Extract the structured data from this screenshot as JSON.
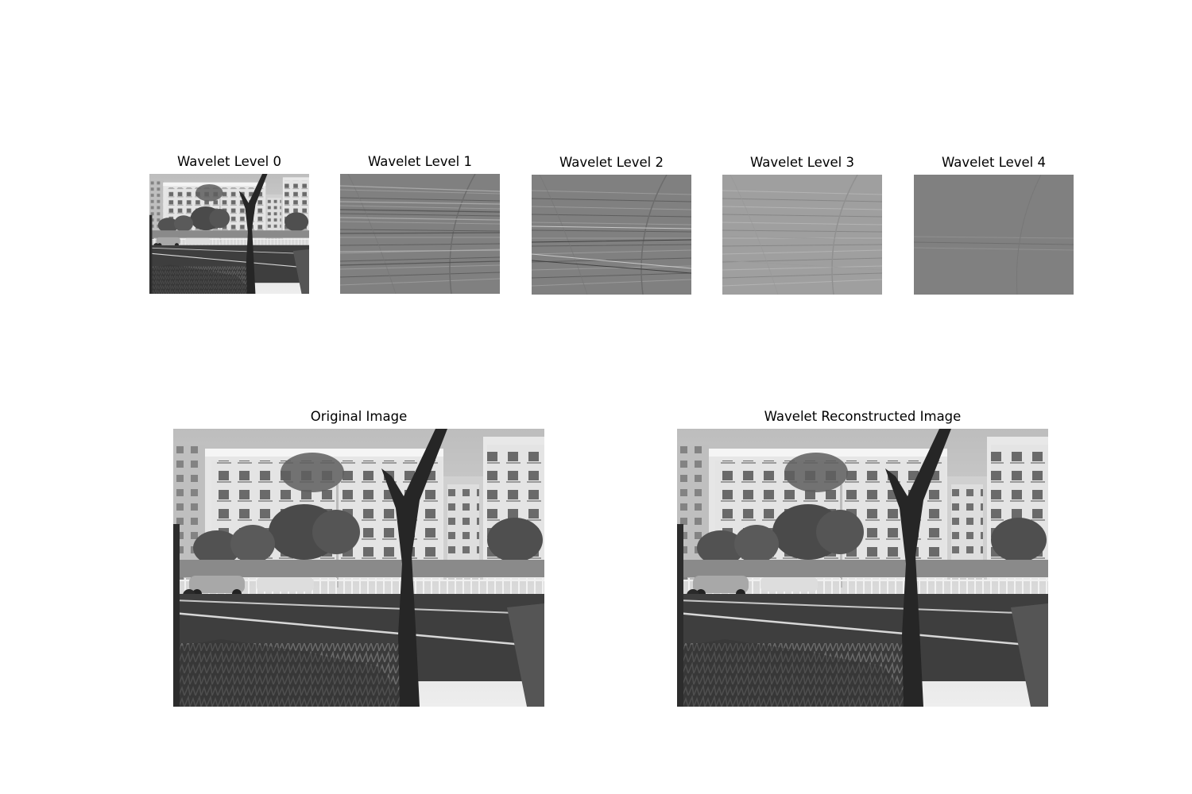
{
  "panels": {
    "wavelet": [
      {
        "title": "Wavelet Level 0"
      },
      {
        "title": "Wavelet Level 1"
      },
      {
        "title": "Wavelet Level 2"
      },
      {
        "title": "Wavelet Level 3"
      },
      {
        "title": "Wavelet Level 4"
      }
    ],
    "original": {
      "title": "Original Image"
    },
    "reconstructed": {
      "title": "Wavelet Reconstructed Image"
    }
  },
  "colors": {
    "background": "#ffffff",
    "detail_gray": "#808080",
    "sky": "#d6d6d6",
    "building": "#e2e2e2",
    "window": "#6e6e6e",
    "foliage": "#4a4a4a",
    "road": "#3c3c3c",
    "tree": "#262626"
  }
}
